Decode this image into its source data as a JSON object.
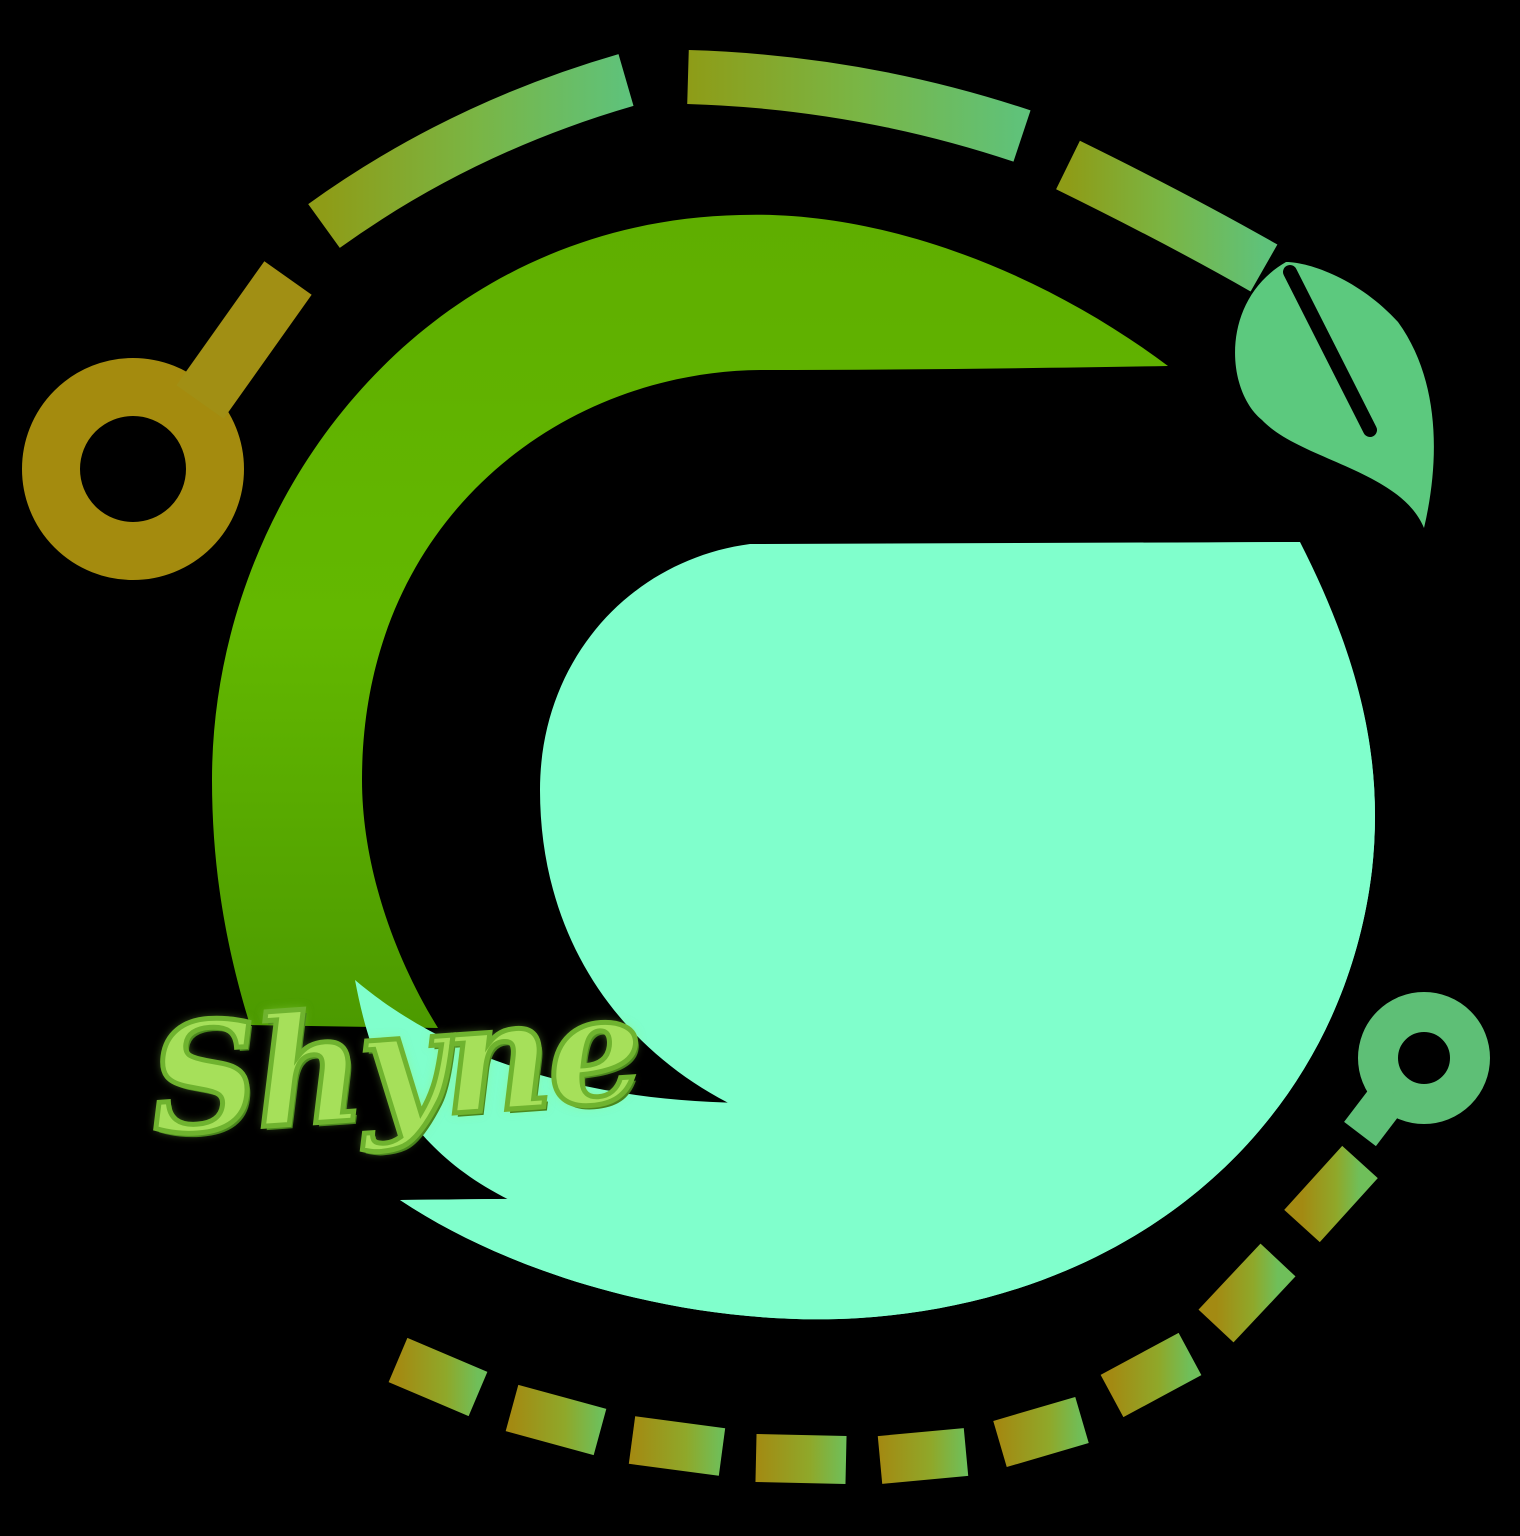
{
  "logo": {
    "wordmark": "Shyne",
    "letter": "G",
    "colors": {
      "background": "#000000",
      "outer_g": "#5DB000",
      "inner_g": "#80FFCC",
      "dashes_start": "#A38A12",
      "dashes_end": "#5FC27A",
      "leaf": "#5CC97E",
      "wordmark": "#A6E05A"
    },
    "icons": [
      "key-node-icon",
      "leaf-icon",
      "pin-node-icon"
    ]
  }
}
